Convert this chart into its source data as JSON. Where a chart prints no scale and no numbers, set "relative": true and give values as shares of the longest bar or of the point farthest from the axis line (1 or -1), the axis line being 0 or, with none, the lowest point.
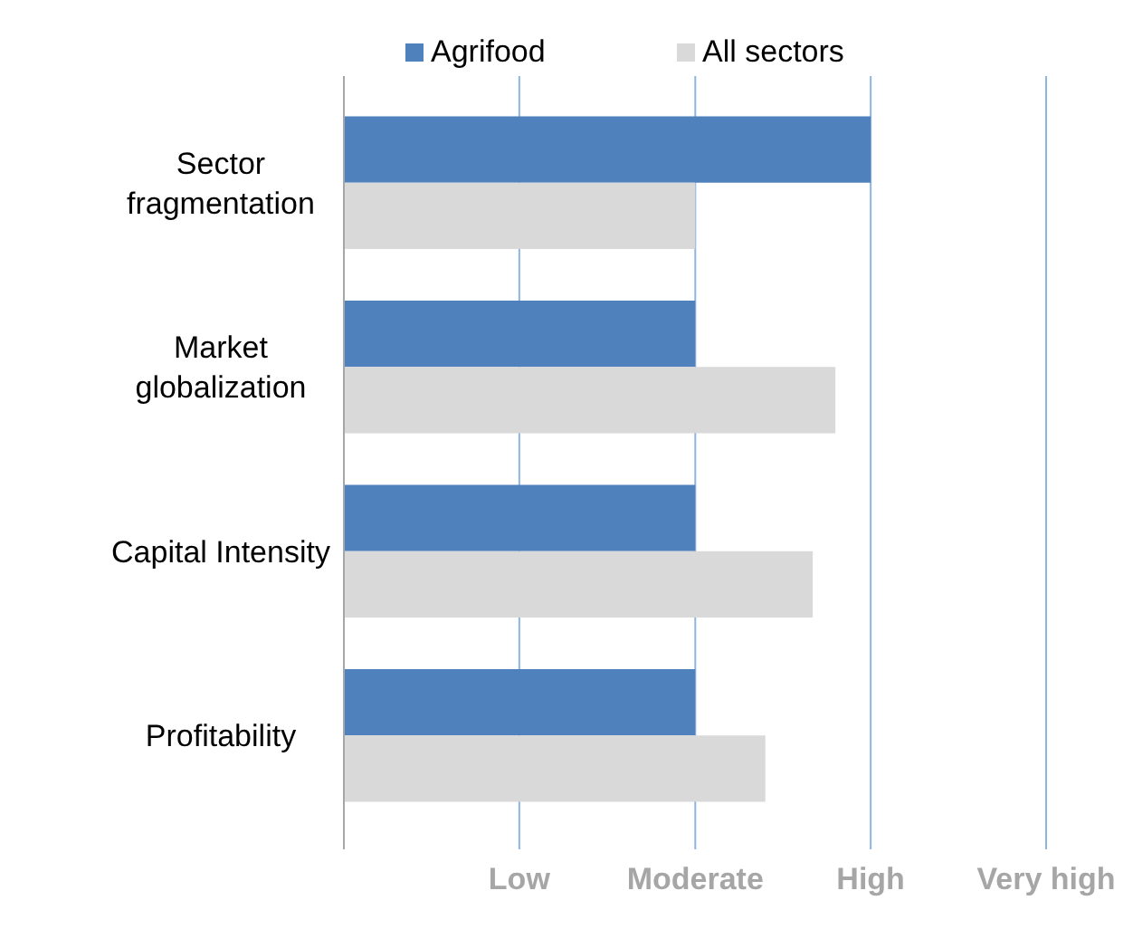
{
  "chart_data": {
    "type": "bar",
    "orientation": "horizontal",
    "relative": true,
    "categories": [
      "Sector fragmentation",
      "Market globalization",
      "Capital Intensity",
      "Profitability"
    ],
    "series": [
      {
        "name": "Agrifood",
        "color": "#4f81bd",
        "values": [
          1,
          0.667,
          0.667,
          0.667
        ]
      },
      {
        "name": "All sectors",
        "color": "#d9d9d9",
        "values": [
          0.667,
          0.933,
          0.89,
          0.8
        ]
      }
    ],
    "ref_lines": [
      {
        "axis": "x",
        "value": 0.333,
        "label": "Low",
        "color": "#8eb4e3"
      },
      {
        "axis": "x",
        "value": 0.667,
        "label": "Moderate",
        "color": "#8eb4e3"
      },
      {
        "axis": "x",
        "value": 1,
        "label": "High",
        "color": "#8eb4e3"
      },
      {
        "axis": "x",
        "value": 1.333,
        "label": "Very high",
        "color": "#8eb4e3"
      }
    ],
    "legend": "top"
  }
}
